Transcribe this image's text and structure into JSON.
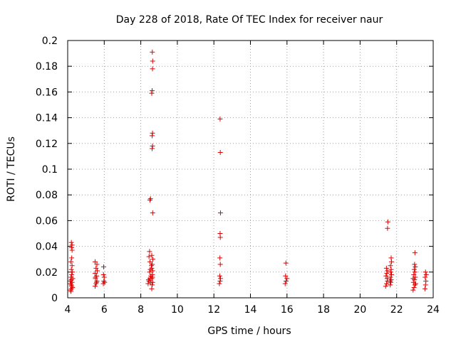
{
  "chart_data": {
    "type": "scatter",
    "title": "Day 228 of 2018, Rate Of TEC Index for receiver naur",
    "xlabel": "GPS time / hours",
    "ylabel": "ROTI / TECUs",
    "xlim": [
      4,
      24
    ],
    "ylim": [
      0,
      0.2
    ],
    "xticks": [
      4,
      6,
      8,
      10,
      12,
      14,
      16,
      18,
      20,
      22,
      24
    ],
    "yticks": [
      0,
      0.02,
      0.04,
      0.06,
      0.08,
      0.1,
      0.12,
      0.14,
      0.16,
      0.18,
      0.2
    ],
    "ytick_labels": [
      "0",
      "0.02",
      "0.04",
      "0.06",
      "0.08",
      "0.1",
      "0.12",
      "0.14",
      "0.16",
      "0.18",
      "0.2"
    ],
    "grid": true,
    "marker": "+",
    "marker_color": "#e00000",
    "points": [
      [
        4.18,
        0.005
      ],
      [
        4.2,
        0.007
      ],
      [
        4.22,
        0.009
      ],
      [
        4.16,
        0.011
      ],
      [
        4.24,
        0.012
      ],
      [
        4.2,
        0.014
      ],
      [
        4.18,
        0.016
      ],
      [
        4.22,
        0.018
      ],
      [
        4.26,
        0.02
      ],
      [
        4.2,
        0.022
      ],
      [
        4.24,
        0.025
      ],
      [
        4.18,
        0.028
      ],
      [
        4.22,
        0.031
      ],
      [
        4.24,
        0.037
      ],
      [
        4.22,
        0.039
      ],
      [
        4.24,
        0.041
      ],
      [
        4.2,
        0.043
      ],
      [
        4.26,
        0.008
      ],
      [
        4.14,
        0.013
      ],
      [
        4.28,
        0.015
      ],
      [
        4.16,
        0.006
      ],
      [
        4.2,
        0.01
      ],
      [
        5.5,
        0.009
      ],
      [
        5.55,
        0.011
      ],
      [
        5.6,
        0.013
      ],
      [
        5.52,
        0.015
      ],
      [
        5.58,
        0.017
      ],
      [
        5.5,
        0.019
      ],
      [
        5.62,
        0.021
      ],
      [
        5.55,
        0.023
      ],
      [
        5.6,
        0.026
      ],
      [
        5.5,
        0.028
      ],
      [
        5.58,
        0.012
      ],
      [
        5.52,
        0.016
      ],
      [
        5.95,
        0.011
      ],
      [
        5.98,
        0.013
      ],
      [
        6.0,
        0.016
      ],
      [
        5.96,
        0.018
      ],
      [
        5.97,
        0.024
      ],
      [
        6.02,
        0.012
      ],
      [
        8.4,
        0.011
      ],
      [
        8.45,
        0.013
      ],
      [
        8.5,
        0.015
      ],
      [
        8.55,
        0.017
      ],
      [
        8.48,
        0.02
      ],
      [
        8.52,
        0.022
      ],
      [
        8.58,
        0.025
      ],
      [
        8.5,
        0.028
      ],
      [
        8.45,
        0.032
      ],
      [
        8.48,
        0.036
      ],
      [
        8.55,
        0.012
      ],
      [
        8.42,
        0.014
      ],
      [
        8.6,
        0.007
      ],
      [
        8.62,
        0.01
      ],
      [
        8.65,
        0.012
      ],
      [
        8.6,
        0.015
      ],
      [
        8.63,
        0.018
      ],
      [
        8.65,
        0.021
      ],
      [
        8.6,
        0.023
      ],
      [
        8.62,
        0.026
      ],
      [
        8.66,
        0.03
      ],
      [
        8.6,
        0.033
      ],
      [
        8.64,
        0.016
      ],
      [
        8.5,
        0.076
      ],
      [
        8.53,
        0.077
      ],
      [
        8.65,
        0.066
      ],
      [
        8.62,
        0.116
      ],
      [
        8.64,
        0.118
      ],
      [
        8.62,
        0.126
      ],
      [
        8.64,
        0.128
      ],
      [
        8.6,
        0.159
      ],
      [
        8.62,
        0.161
      ],
      [
        8.64,
        0.178
      ],
      [
        8.65,
        0.184
      ],
      [
        8.63,
        0.191
      ],
      [
        12.3,
        0.011
      ],
      [
        12.34,
        0.013
      ],
      [
        12.36,
        0.015
      ],
      [
        12.32,
        0.017
      ],
      [
        12.35,
        0.026
      ],
      [
        12.33,
        0.031
      ],
      [
        12.35,
        0.047
      ],
      [
        12.34,
        0.05
      ],
      [
        12.36,
        0.066
      ],
      [
        12.35,
        0.113
      ],
      [
        12.34,
        0.139
      ],
      [
        15.9,
        0.011
      ],
      [
        15.95,
        0.013
      ],
      [
        16.0,
        0.015
      ],
      [
        15.92,
        0.017
      ],
      [
        15.94,
        0.027
      ],
      [
        21.4,
        0.009
      ],
      [
        21.45,
        0.011
      ],
      [
        21.5,
        0.013
      ],
      [
        21.48,
        0.015
      ],
      [
        21.42,
        0.017
      ],
      [
        21.46,
        0.019
      ],
      [
        21.5,
        0.021
      ],
      [
        21.44,
        0.023
      ],
      [
        21.5,
        0.054
      ],
      [
        21.52,
        0.059
      ],
      [
        21.65,
        0.01
      ],
      [
        21.68,
        0.012
      ],
      [
        21.7,
        0.014
      ],
      [
        21.66,
        0.016
      ],
      [
        21.72,
        0.018
      ],
      [
        21.68,
        0.02
      ],
      [
        21.7,
        0.022
      ],
      [
        21.66,
        0.025
      ],
      [
        21.72,
        0.028
      ],
      [
        21.7,
        0.031
      ],
      [
        21.64,
        0.013
      ],
      [
        22.9,
        0.006
      ],
      [
        22.95,
        0.008
      ],
      [
        23.0,
        0.01
      ],
      [
        22.92,
        0.012
      ],
      [
        22.98,
        0.014
      ],
      [
        23.02,
        0.016
      ],
      [
        22.94,
        0.018
      ],
      [
        23.0,
        0.02
      ],
      [
        22.96,
        0.022
      ],
      [
        23.02,
        0.024
      ],
      [
        22.98,
        0.026
      ],
      [
        23.0,
        0.035
      ],
      [
        22.9,
        0.015
      ],
      [
        23.04,
        0.011
      ],
      [
        23.55,
        0.007
      ],
      [
        23.58,
        0.01
      ],
      [
        23.6,
        0.013
      ],
      [
        23.56,
        0.016
      ],
      [
        23.62,
        0.018
      ],
      [
        23.58,
        0.02
      ]
    ]
  }
}
